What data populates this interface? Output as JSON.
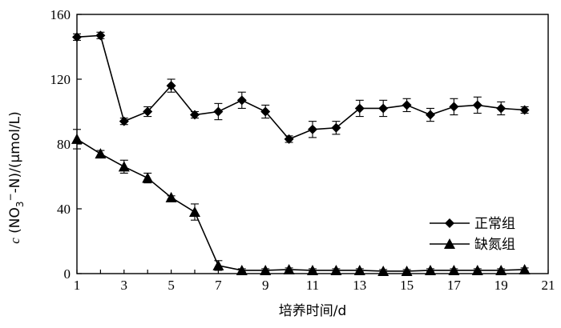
{
  "chart_data": {
    "type": "line",
    "x": [
      1,
      2,
      3,
      4,
      5,
      6,
      7,
      8,
      9,
      10,
      11,
      12,
      13,
      14,
      15,
      16,
      17,
      18,
      19,
      20
    ],
    "xlabel": "培养时间/d",
    "ylabel_prefix": "c",
    "ylabel_main": " (NO",
    "ylabel_sub": "3",
    "ylabel_sup": "−",
    "ylabel_suffix": "-N)/(μmol/L)",
    "xlim": [
      1,
      21
    ],
    "ylim": [
      0,
      160
    ],
    "xticks": [
      1,
      3,
      5,
      7,
      9,
      11,
      13,
      15,
      17,
      19,
      21
    ],
    "xtick_labels": [
      "1",
      "3",
      "5",
      "7",
      "9",
      "11",
      "13",
      "15",
      "17",
      "19",
      "21"
    ],
    "yticks": [
      0,
      40,
      80,
      120,
      160
    ],
    "ytick_labels": [
      "0",
      "40",
      "80",
      "120",
      "160"
    ],
    "grid": false,
    "legend_position": "bottom-right",
    "series": [
      {
        "name": "正常组",
        "marker": "diamond",
        "values": [
          146,
          147,
          94,
          100,
          116,
          98,
          100,
          107,
          100,
          83,
          89,
          90,
          102,
          102,
          104,
          98,
          103,
          104,
          102,
          101
        ],
        "errors": [
          2,
          2,
          2,
          3,
          4,
          2,
          5,
          5,
          4,
          2,
          5,
          4,
          5,
          5,
          4,
          4,
          5,
          5,
          4,
          2
        ]
      },
      {
        "name": "缺氮组",
        "marker": "triangle",
        "values": [
          83,
          74,
          66,
          59,
          47,
          38,
          5,
          2,
          2,
          2.5,
          2,
          2,
          2,
          1.5,
          1.5,
          2,
          2,
          2,
          2,
          2.5
        ],
        "errors": [
          6,
          2,
          4,
          3,
          1,
          5,
          3,
          1,
          1,
          1,
          1,
          1,
          1,
          1,
          1,
          1,
          1,
          1,
          1,
          1
        ]
      }
    ]
  }
}
